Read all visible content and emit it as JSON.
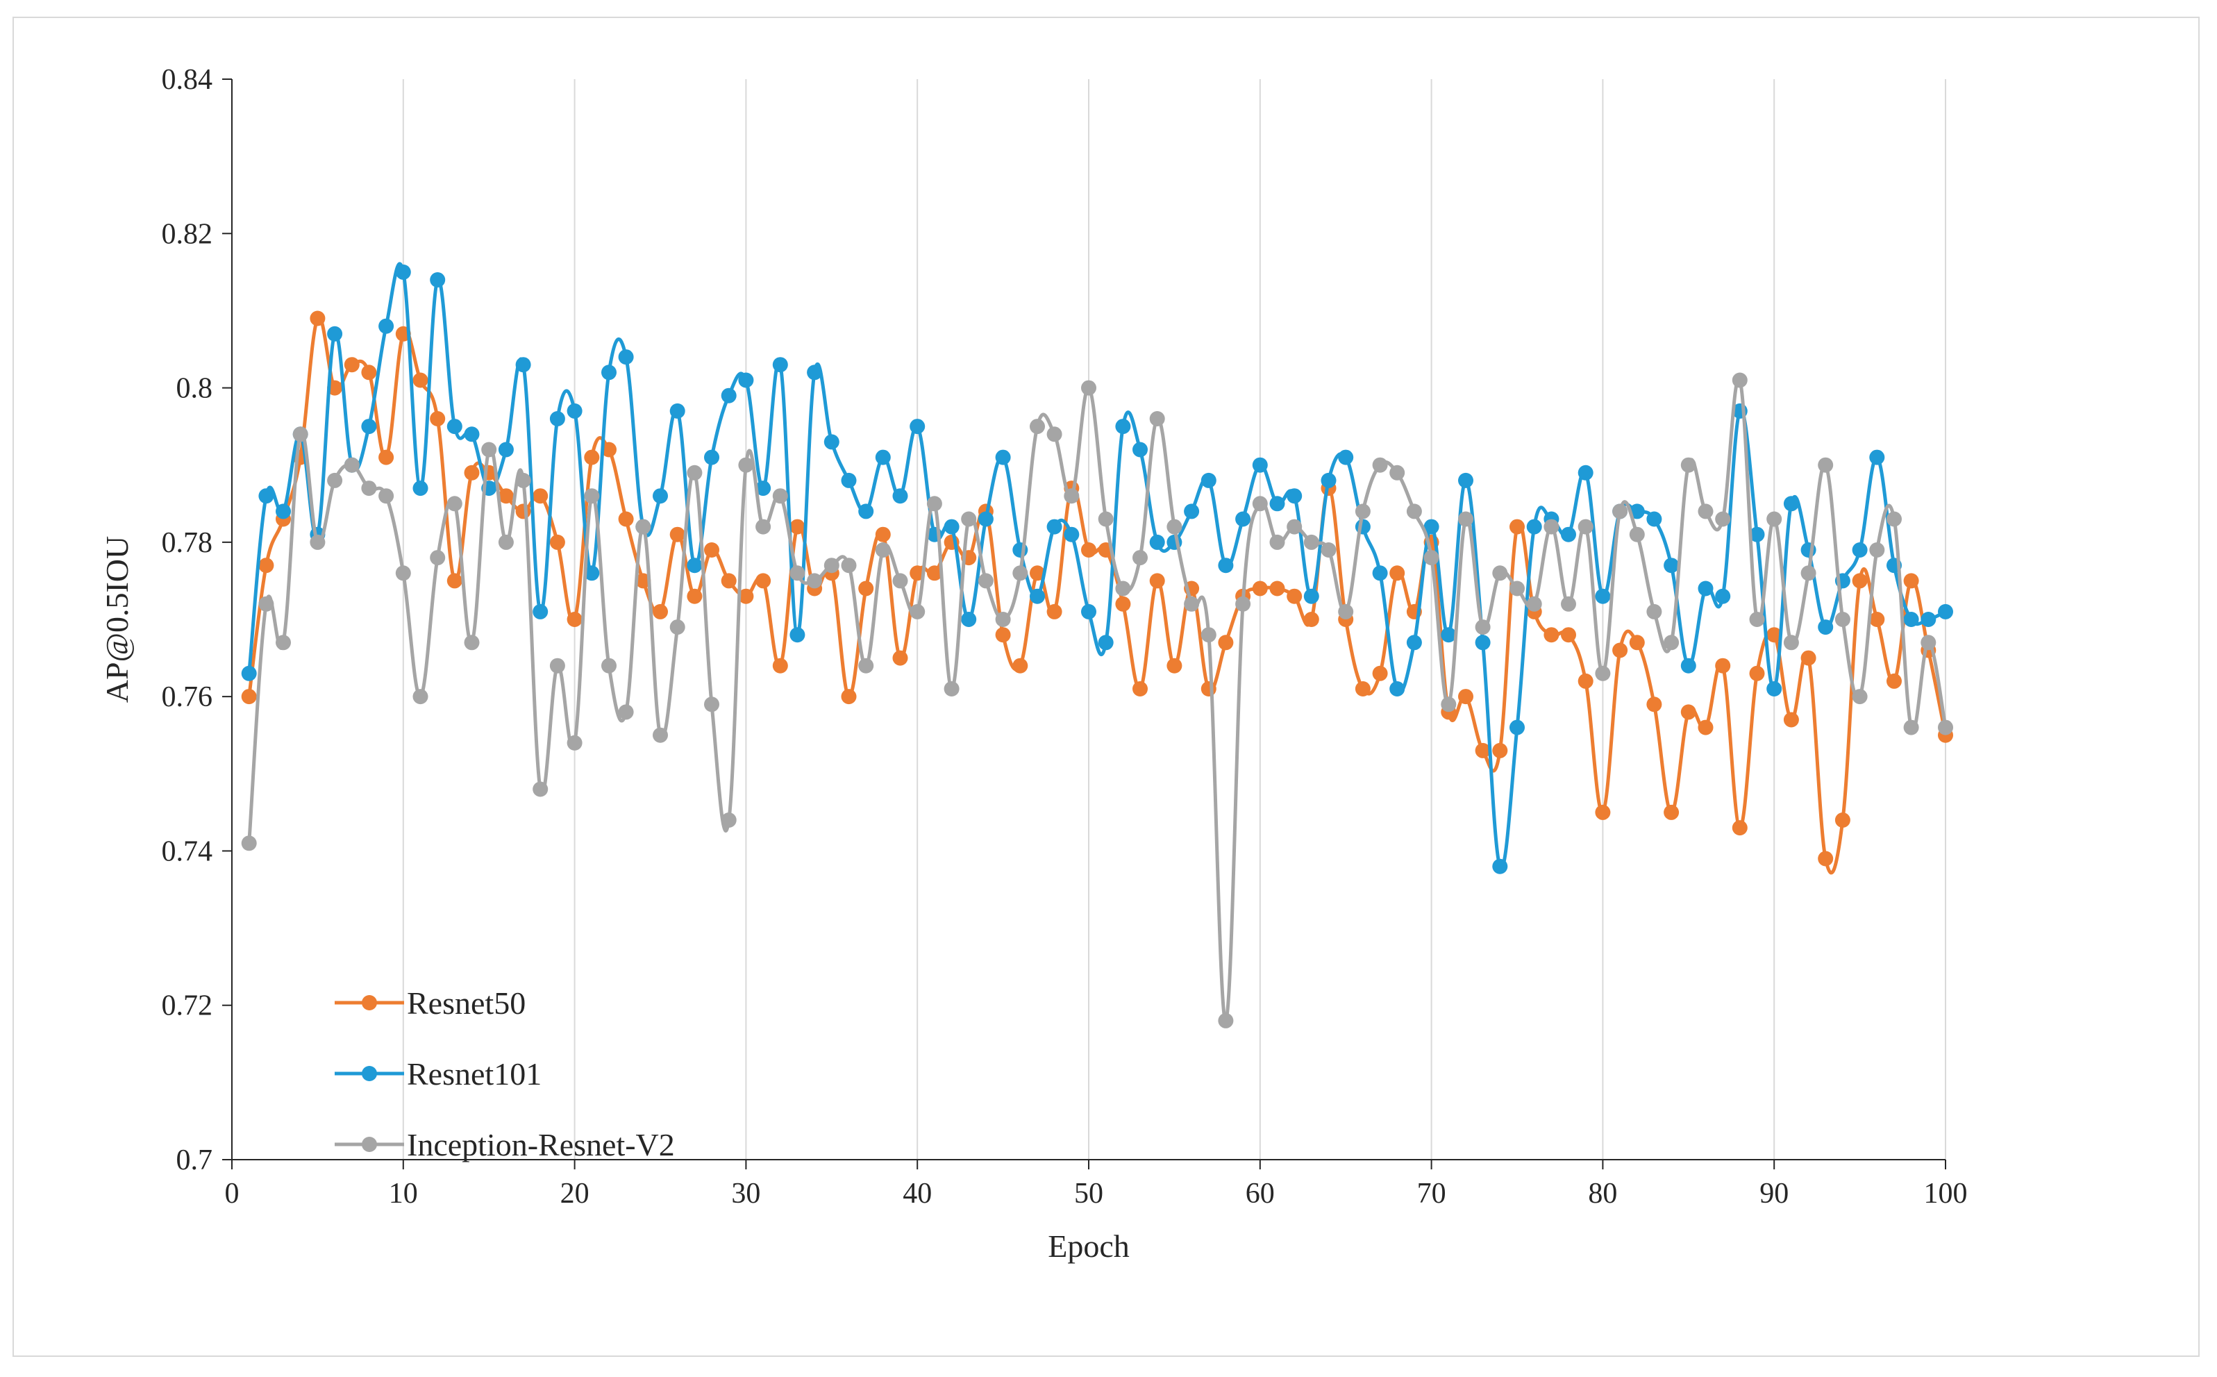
{
  "chart_data": {
    "type": "line",
    "title": "",
    "xlabel": "Epoch",
    "ylabel": "AP@0.5IOU",
    "xlim": [
      0,
      100
    ],
    "ylim": [
      0.7,
      0.84
    ],
    "xticks": [
      0,
      10,
      20,
      30,
      40,
      50,
      60,
      70,
      80,
      90,
      100
    ],
    "xtick_labels": [
      "0",
      "10",
      "20",
      "30",
      "40",
      "50",
      "60",
      "70",
      "80",
      "90",
      "100"
    ],
    "yticks": [
      0.7,
      0.72,
      0.74,
      0.76,
      0.78,
      0.8,
      0.82,
      0.84
    ],
    "ytick_labels": [
      "0.7",
      "0.72",
      "0.74",
      "0.76",
      "0.78",
      "0.8",
      "0.82",
      "0.84"
    ],
    "grid": "vertical",
    "legend_position": "bottom-left",
    "x": [
      1,
      2,
      3,
      4,
      5,
      6,
      7,
      8,
      9,
      10,
      11,
      12,
      13,
      14,
      15,
      16,
      17,
      18,
      19,
      20,
      21,
      22,
      23,
      24,
      25,
      26,
      27,
      28,
      29,
      30,
      31,
      32,
      33,
      34,
      35,
      36,
      37,
      38,
      39,
      40,
      41,
      42,
      43,
      44,
      45,
      46,
      47,
      48,
      49,
      50,
      51,
      52,
      53,
      54,
      55,
      56,
      57,
      58,
      59,
      60,
      61,
      62,
      63,
      64,
      65,
      66,
      67,
      68,
      69,
      70,
      71,
      72,
      73,
      74,
      75,
      76,
      77,
      78,
      79,
      80,
      81,
      82,
      83,
      84,
      85,
      86,
      87,
      88,
      89,
      90,
      91,
      92,
      93,
      94,
      95,
      96,
      97,
      98,
      99,
      100
    ],
    "series": [
      {
        "name": "Resnet50",
        "color": "#ED7D31",
        "values": [
          0.76,
          0.777,
          0.783,
          0.791,
          0.809,
          0.8,
          0.803,
          0.802,
          0.791,
          0.807,
          0.801,
          0.796,
          0.775,
          0.789,
          0.789,
          0.786,
          0.784,
          0.786,
          0.78,
          0.77,
          0.791,
          0.792,
          0.783,
          0.775,
          0.771,
          0.781,
          0.773,
          0.779,
          0.775,
          0.773,
          0.775,
          0.764,
          0.782,
          0.774,
          0.776,
          0.76,
          0.774,
          0.781,
          0.765,
          0.776,
          0.776,
          0.78,
          0.778,
          0.784,
          0.768,
          0.764,
          0.776,
          0.771,
          0.787,
          0.779,
          0.779,
          0.772,
          0.761,
          0.775,
          0.764,
          0.774,
          0.761,
          0.767,
          0.773,
          0.774,
          0.774,
          0.773,
          0.77,
          0.787,
          0.77,
          0.761,
          0.763,
          0.776,
          0.771,
          0.78,
          0.758,
          0.76,
          0.753,
          0.753,
          0.782,
          0.771,
          0.768,
          0.768,
          0.762,
          0.745,
          0.766,
          0.767,
          0.759,
          0.745,
          0.758,
          0.756,
          0.764,
          0.743,
          0.763,
          0.768,
          0.757,
          0.765,
          0.739,
          0.744,
          0.775,
          0.77,
          0.762,
          0.775,
          0.766,
          0.755
        ]
      },
      {
        "name": "Resnet101",
        "color": "#1F9AD6",
        "values": [
          0.763,
          0.786,
          0.784,
          0.794,
          0.781,
          0.807,
          0.79,
          0.795,
          0.808,
          0.815,
          0.787,
          0.814,
          0.795,
          0.794,
          0.787,
          0.792,
          0.803,
          0.771,
          0.796,
          0.797,
          0.776,
          0.802,
          0.804,
          0.782,
          0.786,
          0.797,
          0.777,
          0.791,
          0.799,
          0.801,
          0.787,
          0.803,
          0.768,
          0.802,
          0.793,
          0.788,
          0.784,
          0.791,
          0.786,
          0.795,
          0.781,
          0.782,
          0.77,
          0.783,
          0.791,
          0.779,
          0.773,
          0.782,
          0.781,
          0.771,
          0.767,
          0.795,
          0.792,
          0.78,
          0.78,
          0.784,
          0.788,
          0.777,
          0.783,
          0.79,
          0.785,
          0.786,
          0.773,
          0.788,
          0.791,
          0.782,
          0.776,
          0.761,
          0.767,
          0.782,
          0.768,
          0.788,
          0.767,
          0.738,
          0.756,
          0.782,
          0.783,
          0.781,
          0.789,
          0.773,
          0.784,
          0.784,
          0.783,
          0.777,
          0.764,
          0.774,
          0.773,
          0.797,
          0.781,
          0.761,
          0.785,
          0.779,
          0.769,
          0.775,
          0.779,
          0.791,
          0.777,
          0.77,
          0.77,
          0.771
        ]
      },
      {
        "name": "Inception-Resnet-V2",
        "color": "#A5A5A5",
        "values": [
          0.741,
          0.772,
          0.767,
          0.794,
          0.78,
          0.788,
          0.79,
          0.787,
          0.786,
          0.776,
          0.76,
          0.778,
          0.785,
          0.767,
          0.792,
          0.78,
          0.788,
          0.748,
          0.764,
          0.754,
          0.786,
          0.764,
          0.758,
          0.782,
          0.755,
          0.769,
          0.789,
          0.759,
          0.744,
          0.79,
          0.782,
          0.786,
          0.776,
          0.775,
          0.777,
          0.777,
          0.764,
          0.779,
          0.775,
          0.771,
          0.785,
          0.761,
          0.783,
          0.775,
          0.77,
          0.776,
          0.795,
          0.794,
          0.786,
          0.8,
          0.783,
          0.774,
          0.778,
          0.796,
          0.782,
          0.772,
          0.768,
          0.718,
          0.772,
          0.785,
          0.78,
          0.782,
          0.78,
          0.779,
          0.771,
          0.784,
          0.79,
          0.789,
          0.784,
          0.778,
          0.759,
          0.783,
          0.769,
          0.776,
          0.774,
          0.772,
          0.782,
          0.772,
          0.782,
          0.763,
          0.784,
          0.781,
          0.771,
          0.767,
          0.79,
          0.784,
          0.783,
          0.801,
          0.77,
          0.783,
          0.767,
          0.776,
          0.79,
          0.77,
          0.76,
          0.779,
          0.783,
          0.756,
          0.767,
          0.756
        ]
      }
    ]
  }
}
